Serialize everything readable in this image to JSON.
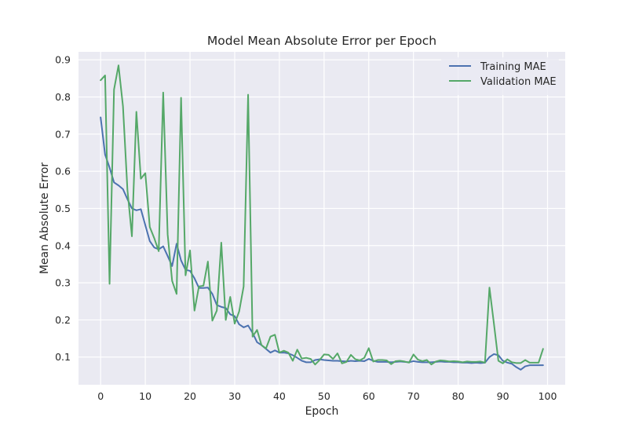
{
  "chart_data": {
    "type": "line",
    "title": "Model Mean Absolute Error per Epoch",
    "xlabel": "Epoch",
    "ylabel": "Mean Absolute Error",
    "xlim": [
      -4.95,
      103.95
    ],
    "ylim": [
      0.0255,
      0.9215
    ],
    "xticks": [
      0,
      10,
      20,
      30,
      40,
      50,
      60,
      70,
      80,
      90,
      100
    ],
    "yticks": [
      0.1,
      0.2,
      0.3,
      0.4,
      0.5,
      0.6,
      0.7,
      0.8,
      0.9
    ],
    "grid": true,
    "legend_position": "top-right",
    "series": [
      {
        "name": "Training MAE",
        "color": "#4c72b0",
        "x": [
          0,
          1,
          2,
          3,
          4,
          5,
          6,
          7,
          8,
          9,
          10,
          11,
          12,
          13,
          14,
          15,
          16,
          17,
          18,
          19,
          20,
          21,
          22,
          23,
          24,
          25,
          26,
          27,
          28,
          29,
          30,
          31,
          32,
          33,
          34,
          35,
          36,
          37,
          38,
          39,
          40,
          41,
          42,
          43,
          44,
          45,
          46,
          47,
          48,
          49,
          50,
          51,
          52,
          53,
          54,
          55,
          56,
          57,
          58,
          59,
          60,
          61,
          62,
          63,
          64,
          65,
          66,
          67,
          68,
          69,
          70,
          71,
          72,
          73,
          74,
          75,
          76,
          77,
          78,
          79,
          80,
          81,
          82,
          83,
          84,
          85,
          86,
          87,
          88,
          89,
          90,
          91,
          92,
          93,
          94,
          95,
          96,
          97,
          98,
          99
        ],
        "values": [
          0.745,
          0.645,
          0.61,
          0.57,
          0.562,
          0.552,
          0.525,
          0.5,
          0.495,
          0.498,
          0.455,
          0.412,
          0.395,
          0.39,
          0.398,
          0.372,
          0.345,
          0.405,
          0.36,
          0.335,
          0.332,
          0.312,
          0.286,
          0.286,
          0.287,
          0.27,
          0.24,
          0.235,
          0.232,
          0.215,
          0.21,
          0.188,
          0.18,
          0.185,
          0.165,
          0.14,
          0.132,
          0.122,
          0.112,
          0.118,
          0.112,
          0.112,
          0.11,
          0.105,
          0.098,
          0.09,
          0.086,
          0.086,
          0.092,
          0.094,
          0.092,
          0.091,
          0.09,
          0.09,
          0.089,
          0.088,
          0.09,
          0.089,
          0.09,
          0.089,
          0.095,
          0.09,
          0.087,
          0.087,
          0.087,
          0.086,
          0.087,
          0.088,
          0.087,
          0.086,
          0.089,
          0.087,
          0.086,
          0.086,
          0.086,
          0.087,
          0.088,
          0.087,
          0.087,
          0.086,
          0.086,
          0.085,
          0.085,
          0.084,
          0.085,
          0.084,
          0.085,
          0.1,
          0.108,
          0.105,
          0.09,
          0.085,
          0.082,
          0.073,
          0.066,
          0.075,
          0.078,
          0.078,
          0.078,
          0.078
        ]
      },
      {
        "name": "Validation MAE",
        "color": "#55a868",
        "x": [
          0,
          1,
          2,
          3,
          4,
          5,
          6,
          7,
          8,
          9,
          10,
          11,
          12,
          13,
          14,
          15,
          16,
          17,
          18,
          19,
          20,
          21,
          22,
          23,
          24,
          25,
          26,
          27,
          28,
          29,
          30,
          31,
          32,
          33,
          34,
          35,
          36,
          37,
          38,
          39,
          40,
          41,
          42,
          43,
          44,
          45,
          46,
          47,
          48,
          49,
          50,
          51,
          52,
          53,
          54,
          55,
          56,
          57,
          58,
          59,
          60,
          61,
          62,
          63,
          64,
          65,
          66,
          67,
          68,
          69,
          70,
          71,
          72,
          73,
          74,
          75,
          76,
          77,
          78,
          79,
          80,
          81,
          82,
          83,
          84,
          85,
          86,
          87,
          88,
          89,
          90,
          91,
          92,
          93,
          94,
          95,
          96,
          97,
          98,
          99
        ],
        "values": [
          0.845,
          0.858,
          0.297,
          0.82,
          0.885,
          0.775,
          0.55,
          0.425,
          0.76,
          0.58,
          0.595,
          0.45,
          0.42,
          0.385,
          0.812,
          0.43,
          0.305,
          0.27,
          0.798,
          0.32,
          0.387,
          0.225,
          0.29,
          0.292,
          0.357,
          0.198,
          0.225,
          0.408,
          0.2,
          0.262,
          0.19,
          0.223,
          0.29,
          0.806,
          0.155,
          0.173,
          0.132,
          0.123,
          0.155,
          0.16,
          0.112,
          0.117,
          0.112,
          0.09,
          0.12,
          0.096,
          0.098,
          0.095,
          0.08,
          0.092,
          0.107,
          0.106,
          0.095,
          0.11,
          0.083,
          0.087,
          0.106,
          0.094,
          0.091,
          0.098,
          0.124,
          0.088,
          0.092,
          0.092,
          0.091,
          0.081,
          0.089,
          0.09,
          0.088,
          0.085,
          0.107,
          0.093,
          0.089,
          0.092,
          0.08,
          0.088,
          0.091,
          0.09,
          0.088,
          0.089,
          0.088,
          0.086,
          0.088,
          0.087,
          0.087,
          0.088,
          0.085,
          0.287,
          0.19,
          0.09,
          0.083,
          0.094,
          0.086,
          0.084,
          0.084,
          0.092,
          0.085,
          0.085,
          0.085,
          0.122
        ]
      }
    ]
  }
}
